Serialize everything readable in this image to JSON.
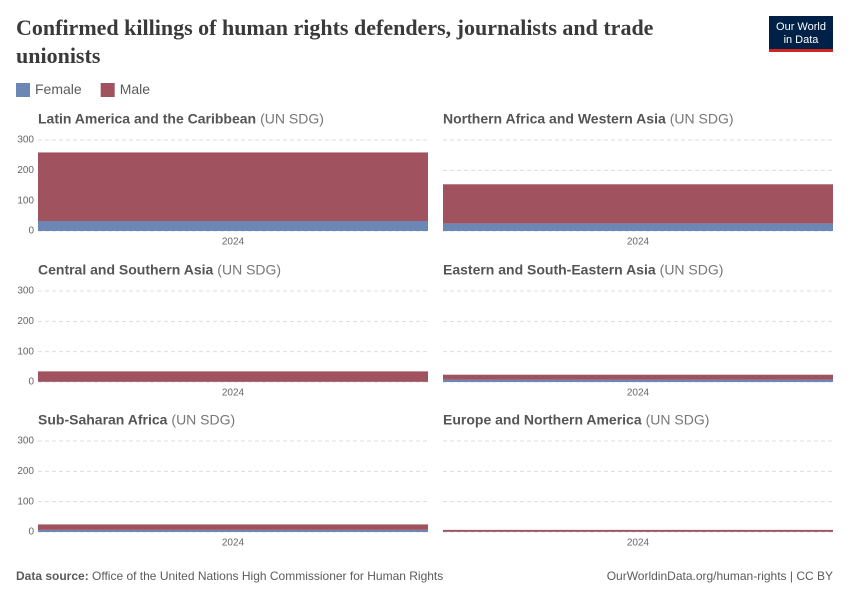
{
  "title": "Confirmed killings of human rights defenders, journalists and trade unionists",
  "logo": [
    "Our World",
    "in Data"
  ],
  "source_label": "Data source:",
  "source": "Office of the United Nations High Commissioner for Human Rights",
  "credit": "OurWorldinData.org/human-rights | CC BY",
  "chart_data": [
    {
      "type": "area",
      "stacked": true,
      "title": "Latin America and the Caribbean",
      "title_suffix": "(UN SDG)",
      "x": [
        "2024"
      ],
      "ylim": [
        0,
        300
      ],
      "yticks": [
        0,
        100,
        200,
        300
      ],
      "grid": true,
      "series": [
        {
          "name": "Female",
          "color": "#6d87b4",
          "values": [
            33
          ]
        },
        {
          "name": "Male",
          "color": "#a0525f",
          "values": [
            226
          ]
        }
      ]
    },
    {
      "type": "area",
      "stacked": true,
      "title": "Northern Africa and Western Asia",
      "title_suffix": "(UN SDG)",
      "x": [
        "2024"
      ],
      "ylim": [
        0,
        300
      ],
      "yticks": [
        0,
        100,
        200,
        300
      ],
      "grid": true,
      "series": [
        {
          "name": "Female",
          "color": "#6d87b4",
          "values": [
            25
          ]
        },
        {
          "name": "Male",
          "color": "#a0525f",
          "values": [
            129
          ]
        }
      ]
    },
    {
      "type": "area",
      "stacked": true,
      "title": "Central and Southern Asia",
      "title_suffix": "(UN SDG)",
      "x": [
        "2024"
      ],
      "ylim": [
        0,
        300
      ],
      "yticks": [
        0,
        100,
        200,
        300
      ],
      "grid": true,
      "series": [
        {
          "name": "Female",
          "color": "#6d87b4",
          "values": [
            1
          ]
        },
        {
          "name": "Male",
          "color": "#a0525f",
          "values": [
            34
          ]
        }
      ]
    },
    {
      "type": "area",
      "stacked": true,
      "title": "Eastern and South-Eastern Asia",
      "title_suffix": "(UN SDG)",
      "x": [
        "2024"
      ],
      "ylim": [
        0,
        300
      ],
      "yticks": [
        0,
        100,
        200,
        300
      ],
      "grid": true,
      "series": [
        {
          "name": "Female",
          "color": "#6d87b4",
          "values": [
            8
          ]
        },
        {
          "name": "Male",
          "color": "#a0525f",
          "values": [
            16
          ]
        }
      ]
    },
    {
      "type": "area",
      "stacked": true,
      "title": "Sub-Saharan Africa",
      "title_suffix": "(UN SDG)",
      "x": [
        "2024"
      ],
      "ylim": [
        0,
        300
      ],
      "yticks": [
        0,
        100,
        200,
        300
      ],
      "grid": true,
      "series": [
        {
          "name": "Female",
          "color": "#6d87b4",
          "values": [
            7
          ]
        },
        {
          "name": "Male",
          "color": "#a0525f",
          "values": [
            18
          ]
        }
      ]
    },
    {
      "type": "area",
      "stacked": true,
      "title": "Europe and Northern America",
      "title_suffix": "(UN SDG)",
      "x": [
        "2024"
      ],
      "ylim": [
        0,
        300
      ],
      "yticks": [
        0,
        100,
        200,
        300
      ],
      "grid": true,
      "series": [
        {
          "name": "Female",
          "color": "#6d87b4",
          "values": [
            1
          ]
        },
        {
          "name": "Male",
          "color": "#a0525f",
          "values": [
            6
          ]
        }
      ]
    }
  ]
}
